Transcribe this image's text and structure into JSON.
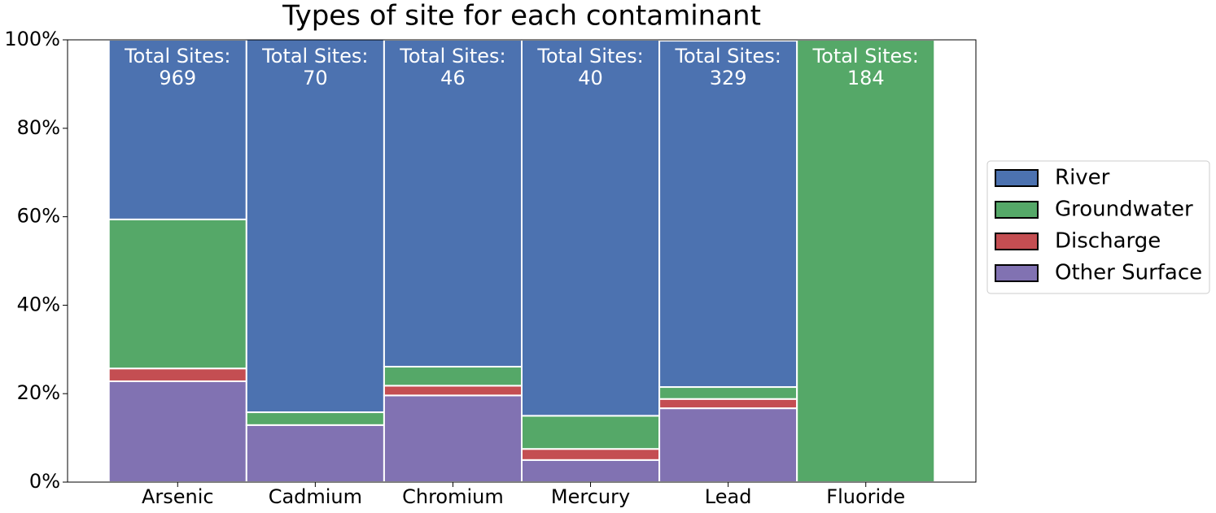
{
  "chart_data": {
    "type": "stacked_bar",
    "title": "Types of site for each contaminant",
    "categories": [
      "Arsenic",
      "Cadmium",
      "Chromium",
      "Mercury",
      "Lead",
      "Fluoride"
    ],
    "series": [
      {
        "name": "River",
        "color": "#4c72b0",
        "values": [
          40.6,
          84.3,
          73.9,
          85.0,
          78.3,
          0
        ]
      },
      {
        "name": "Groundwater",
        "color": "#55a868",
        "values": [
          33.7,
          2.9,
          4.3,
          7.5,
          2.7,
          100
        ]
      },
      {
        "name": "Discharge",
        "color": "#c44e52",
        "values": [
          2.9,
          0,
          2.2,
          2.5,
          2.1,
          0
        ]
      },
      {
        "name": "Other Surface",
        "color": "#8172b2",
        "values": [
          22.8,
          12.9,
          19.6,
          5.0,
          16.7,
          0
        ]
      }
    ],
    "annotations": [
      {
        "label": "Total Sites:",
        "value": 969
      },
      {
        "label": "Total Sites:",
        "value": 70
      },
      {
        "label": "Total Sites:",
        "value": 46
      },
      {
        "label": "Total Sites:",
        "value": 40
      },
      {
        "label": "Total Sites:",
        "value": 329
      },
      {
        "label": "Total Sites:",
        "value": 184
      }
    ],
    "ylim": [
      0,
      100
    ],
    "yticks": [
      {
        "value": 0,
        "label": "0%"
      },
      {
        "value": 20,
        "label": "20%"
      },
      {
        "value": 40,
        "label": "40%"
      },
      {
        "value": 60,
        "label": "60%"
      },
      {
        "value": 80,
        "label": "80%"
      },
      {
        "value": 100,
        "label": "100%"
      }
    ],
    "legend": "right"
  }
}
